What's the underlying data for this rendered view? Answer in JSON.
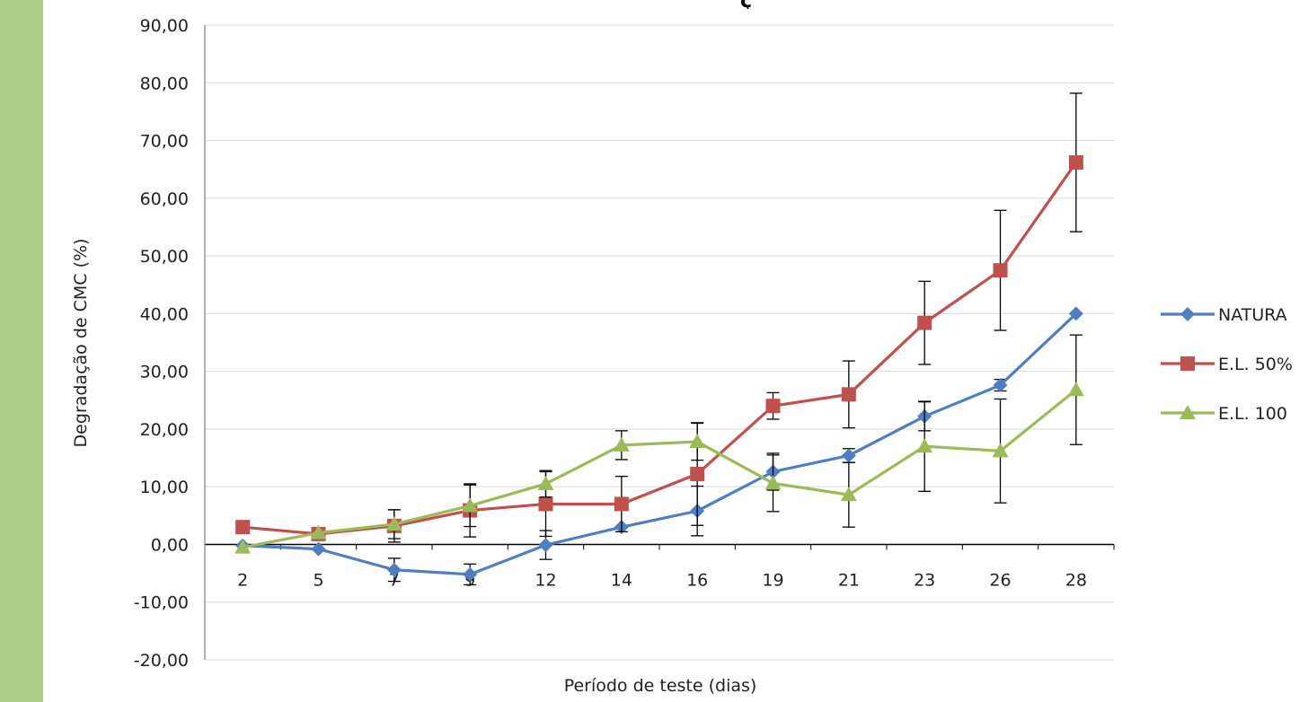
{
  "colors": {
    "left_band": "#a9cf87",
    "grid": "#d9d9d9",
    "axis": "#000000"
  },
  "chart_data": {
    "type": "line",
    "title": "",
    "xlabel": "Período de teste (dias)",
    "ylabel": "Degradação de CMC (%)",
    "ylim": [
      -20,
      90
    ],
    "yticks": [
      "90,00",
      "80,00",
      "70,00",
      "60,00",
      "50,00",
      "40,00",
      "30,00",
      "20,00",
      "10,00",
      "0,00",
      "-10,00",
      "-20,00"
    ],
    "categories": [
      "2",
      "5",
      "7",
      "9",
      "12",
      "14",
      "16",
      "19",
      "21",
      "23",
      "26",
      "28"
    ],
    "grid": "horizontal",
    "legend_position": "right",
    "series": [
      {
        "name": "NATURA",
        "color": "#4f7fc2",
        "marker": "diamond",
        "values": [
          -0.2,
          -0.8,
          -4.4,
          -5.2,
          -0.1,
          3.0,
          5.8,
          12.6,
          15.4,
          22.2,
          27.6,
          40.0
        ],
        "errors": [
          0,
          0,
          2.0,
          1.8,
          2.5,
          0,
          4.3,
          3.2,
          1.2,
          2.5,
          1.0,
          0
        ]
      },
      {
        "name": "E.L. 50%",
        "color": "#c0504d",
        "marker": "square",
        "values": [
          3.0,
          1.8,
          3.2,
          5.9,
          7.0,
          7.0,
          12.2,
          24.0,
          26.0,
          38.4,
          47.5,
          66.2
        ],
        "errors": [
          0,
          0,
          2.8,
          4.6,
          5.6,
          4.8,
          8.9,
          2.3,
          5.8,
          7.2,
          10.4,
          12.0
        ]
      },
      {
        "name": "E.L. 100",
        "color": "#9bbb59",
        "marker": "triangle",
        "values": [
          -0.5,
          2.0,
          3.5,
          6.7,
          10.5,
          17.2,
          17.8,
          10.6,
          8.6,
          17.0,
          16.2,
          26.8
        ],
        "errors": [
          0,
          0,
          2.5,
          3.6,
          2.3,
          2.5,
          3.2,
          4.9,
          5.6,
          7.8,
          9.0,
          9.5
        ]
      }
    ]
  }
}
